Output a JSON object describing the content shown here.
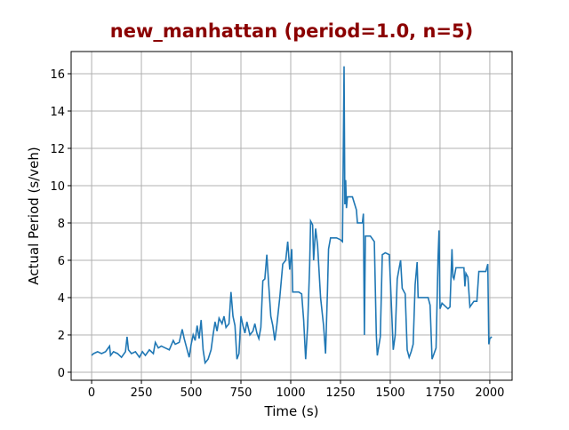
{
  "chart_data": {
    "type": "line",
    "title": "new_manhattan (period=1.0, n=5)",
    "x_label": "Time (s)",
    "y_label": "Actual Period (s/veh)",
    "x": [
      0,
      10,
      30,
      50,
      70,
      90,
      95,
      110,
      130,
      150,
      170,
      178,
      185,
      200,
      220,
      240,
      255,
      270,
      290,
      310,
      320,
      335,
      350,
      370,
      390,
      410,
      420,
      440,
      455,
      465,
      480,
      490,
      500,
      510,
      520,
      530,
      540,
      550,
      560,
      570,
      585,
      600,
      610,
      620,
      630,
      640,
      655,
      665,
      675,
      690,
      700,
      710,
      720,
      730,
      740,
      750,
      760,
      770,
      780,
      795,
      810,
      820,
      830,
      840,
      850,
      860,
      870,
      880,
      890,
      900,
      910,
      920,
      930,
      945,
      960,
      975,
      985,
      995,
      1005,
      1010,
      1040,
      1055,
      1065,
      1075,
      1085,
      1095,
      1100,
      1110,
      1115,
      1125,
      1135,
      1150,
      1165,
      1175,
      1185,
      1190,
      1200,
      1230,
      1250,
      1260,
      1268,
      1272,
      1276,
      1280,
      1285,
      1310,
      1330,
      1335,
      1360,
      1365,
      1370,
      1375,
      1400,
      1420,
      1430,
      1435,
      1450,
      1460,
      1475,
      1495,
      1505,
      1515,
      1525,
      1535,
      1545,
      1552,
      1560,
      1575,
      1585,
      1595,
      1605,
      1615,
      1625,
      1635,
      1640,
      1690,
      1700,
      1710,
      1720,
      1730,
      1740,
      1745,
      1750,
      1760,
      1790,
      1800,
      1810,
      1815,
      1820,
      1830,
      1870,
      1875,
      1880,
      1890,
      1900,
      1920,
      1935,
      1945,
      1980,
      1990,
      1995,
      2000,
      2010
    ],
    "values": [
      0.9,
      1.0,
      1.1,
      1.0,
      1.1,
      1.4,
      0.9,
      1.1,
      1.0,
      0.8,
      1.1,
      1.9,
      1.2,
      1.0,
      1.1,
      0.8,
      1.1,
      0.9,
      1.2,
      1.0,
      1.6,
      1.3,
      1.4,
      1.3,
      1.2,
      1.7,
      1.5,
      1.6,
      2.3,
      1.8,
      1.2,
      0.8,
      1.5,
      2.0,
      1.7,
      2.5,
      1.8,
      2.8,
      1.2,
      0.5,
      0.7,
      1.2,
      2.0,
      2.7,
      2.2,
      2.9,
      2.6,
      3.0,
      2.4,
      2.6,
      4.3,
      3.0,
      2.5,
      0.7,
      1.0,
      3.0,
      2.5,
      2.1,
      2.7,
      2.0,
      2.2,
      2.6,
      2.1,
      1.8,
      2.4,
      4.9,
      5.0,
      6.3,
      4.6,
      3.0,
      2.5,
      1.7,
      2.5,
      4.0,
      5.8,
      6.0,
      7.0,
      5.5,
      6.6,
      4.3,
      4.3,
      4.2,
      2.8,
      0.7,
      2.5,
      5.7,
      8.1,
      7.9,
      6.0,
      7.7,
      6.8,
      4.0,
      2.5,
      1.0,
      4.5,
      6.6,
      7.2,
      7.2,
      7.1,
      7.0,
      16.4,
      9.0,
      10.3,
      8.8,
      9.4,
      9.4,
      8.7,
      8.0,
      8.0,
      8.5,
      2.0,
      7.3,
      7.3,
      7.0,
      2.0,
      0.9,
      1.9,
      6.3,
      6.4,
      6.3,
      3.8,
      1.2,
      2.0,
      5.0,
      5.6,
      6.0,
      4.5,
      4.2,
      1.2,
      0.8,
      1.1,
      1.5,
      4.7,
      5.9,
      4.0,
      4.0,
      3.6,
      0.7,
      1.0,
      1.3,
      6.1,
      7.6,
      3.4,
      3.7,
      3.4,
      3.5,
      6.6,
      5.1,
      5.0,
      5.6,
      5.6,
      4.6,
      5.3,
      5.1,
      3.5,
      3.8,
      3.8,
      5.4,
      5.4,
      5.8,
      1.5,
      1.8,
      1.9
    ],
    "color": "#1f77b4",
    "xlim": [
      -103,
      2112
    ],
    "ylim": [
      -0.43,
      17.19
    ],
    "xticks": [
      0,
      250,
      500,
      750,
      1000,
      1250,
      1500,
      1750,
      2000
    ],
    "yticks": [
      0,
      2,
      4,
      6,
      8,
      10,
      12,
      14,
      16
    ],
    "grid": true
  }
}
